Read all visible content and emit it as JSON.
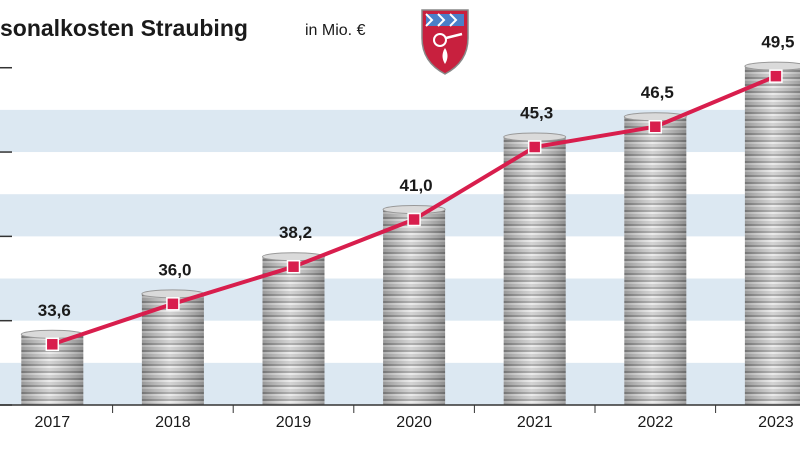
{
  "chart_data": {
    "type": "line",
    "title": "sonalkosten Straubing",
    "subtitle": "in Mio. €",
    "categories": [
      "2017",
      "2018",
      "2019",
      "2020",
      "2021",
      "2022",
      "2023"
    ],
    "values": [
      33.6,
      36.0,
      38.2,
      41.0,
      45.3,
      46.5,
      49.5
    ],
    "value_labels": [
      "33,6",
      "36,0",
      "38,2",
      "41,0",
      "45,3",
      "46,5",
      "49,5"
    ],
    "color": "#d81e4d",
    "ylim": [
      30,
      52
    ],
    "yticks": [
      30,
      35,
      40,
      45,
      50
    ]
  }
}
